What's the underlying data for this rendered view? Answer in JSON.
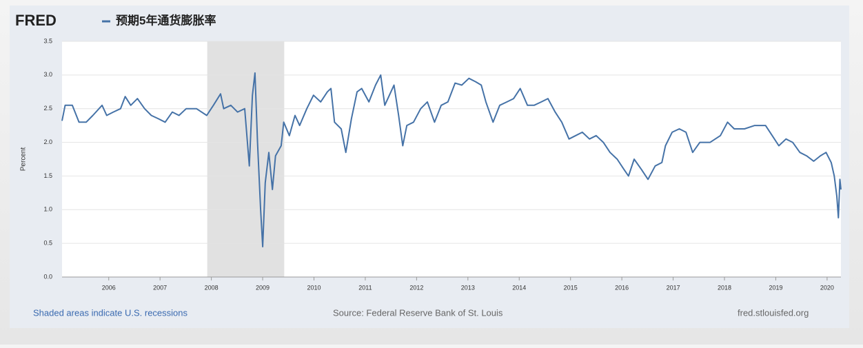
{
  "chart_data": {
    "type": "line",
    "logo": "FRED",
    "title": "预期5年通货膨胀率",
    "ylabel": "Percent",
    "note": "Shaded areas indicate U.S. recessions",
    "source": "Source: Federal Reserve Bank of St. Louis",
    "website": "fred.stlouisfed.org",
    "xlim": [
      2005.09,
      2020.27
    ],
    "xticks": [
      2006,
      2007,
      2008,
      2009,
      2010,
      2011,
      2012,
      2013,
      2014,
      2015,
      2016,
      2017,
      2018,
      2019,
      2020
    ],
    "ylim": [
      0,
      3.5
    ],
    "yticks": [
      {
        "value": 0,
        "label": "0.0"
      },
      0.5,
      {
        "value": 1,
        "label": "1.0"
      },
      1.5,
      {
        "value": 2,
        "label": "2.0"
      },
      2.5,
      {
        "value": 3,
        "label": "3.0"
      },
      3.5
    ],
    "grid": true,
    "recessions": [
      [
        2007.92,
        2009.42
      ]
    ],
    "x": [
      2005.09,
      2005.15,
      2005.29,
      2005.42,
      2005.56,
      2005.69,
      2005.87,
      2005.96,
      2006.09,
      2006.23,
      2006.32,
      2006.43,
      2006.56,
      2006.7,
      2006.83,
      2006.97,
      2007.1,
      2007.24,
      2007.37,
      2007.51,
      2007.71,
      2007.91,
      2008.04,
      2008.18,
      2008.24,
      2008.38,
      2008.51,
      2008.65,
      2008.74,
      2008.8,
      2008.85,
      2008.9,
      2008.96,
      2009.0,
      2009.05,
      2009.12,
      2009.19,
      2009.25,
      2009.36,
      2009.41,
      2009.52,
      2009.63,
      2009.72,
      2009.86,
      2009.99,
      2010.13,
      2010.26,
      2010.33,
      2010.4,
      2010.53,
      2010.62,
      2010.73,
      2010.84,
      2010.93,
      2011.07,
      2011.2,
      2011.3,
      2011.38,
      2011.47,
      2011.56,
      2011.65,
      2011.73,
      2011.81,
      2011.94,
      2012.08,
      2012.21,
      2012.35,
      2012.48,
      2012.61,
      2012.75,
      2012.88,
      2013.02,
      2013.15,
      2013.26,
      2013.35,
      2013.49,
      2013.62,
      2013.76,
      2013.89,
      2014.02,
      2014.16,
      2014.29,
      2014.43,
      2014.56,
      2014.7,
      2014.83,
      2014.97,
      2015.1,
      2015.23,
      2015.37,
      2015.5,
      2015.64,
      2015.77,
      2015.91,
      2016.04,
      2016.13,
      2016.24,
      2016.38,
      2016.51,
      2016.65,
      2016.78,
      2016.85,
      2016.98,
      2017.12,
      2017.25,
      2017.38,
      2017.52,
      2017.72,
      2017.92,
      2018.06,
      2018.19,
      2018.39,
      2018.59,
      2018.8,
      2018.93,
      2019.06,
      2019.2,
      2019.33,
      2019.47,
      2019.6,
      2019.74,
      2019.87,
      2019.98,
      2020.08,
      2020.14,
      2020.19,
      2020.22,
      2020.25,
      2020.27
    ],
    "series": [
      {
        "color": "#4572a7",
        "values": [
          2.32,
          2.55,
          2.55,
          2.3,
          2.3,
          2.4,
          2.55,
          2.4,
          2.45,
          2.5,
          2.68,
          2.55,
          2.65,
          2.5,
          2.4,
          2.35,
          2.3,
          2.45,
          2.4,
          2.5,
          2.5,
          2.4,
          2.55,
          2.72,
          2.5,
          2.55,
          2.45,
          2.5,
          1.65,
          2.7,
          3.03,
          2.0,
          1.0,
          0.45,
          1.4,
          1.85,
          1.3,
          1.8,
          1.95,
          2.3,
          2.1,
          2.4,
          2.25,
          2.5,
          2.7,
          2.6,
          2.75,
          2.8,
          2.3,
          2.2,
          1.85,
          2.35,
          2.75,
          2.8,
          2.6,
          2.85,
          3.0,
          2.55,
          2.7,
          2.85,
          2.4,
          1.95,
          2.25,
          2.3,
          2.5,
          2.6,
          2.3,
          2.55,
          2.6,
          2.88,
          2.85,
          2.95,
          2.9,
          2.85,
          2.6,
          2.3,
          2.55,
          2.6,
          2.65,
          2.8,
          2.55,
          2.55,
          2.6,
          2.65,
          2.45,
          2.3,
          2.05,
          2.1,
          2.15,
          2.05,
          2.1,
          2.0,
          1.85,
          1.75,
          1.6,
          1.5,
          1.75,
          1.6,
          1.45,
          1.65,
          1.7,
          1.95,
          2.15,
          2.2,
          2.15,
          1.85,
          2.0,
          2.0,
          2.1,
          2.3,
          2.2,
          2.2,
          2.25,
          2.25,
          2.1,
          1.95,
          2.05,
          2.0,
          1.85,
          1.8,
          1.72,
          1.8,
          1.85,
          1.7,
          1.5,
          1.2,
          0.88,
          1.45,
          1.3
        ]
      }
    ]
  }
}
